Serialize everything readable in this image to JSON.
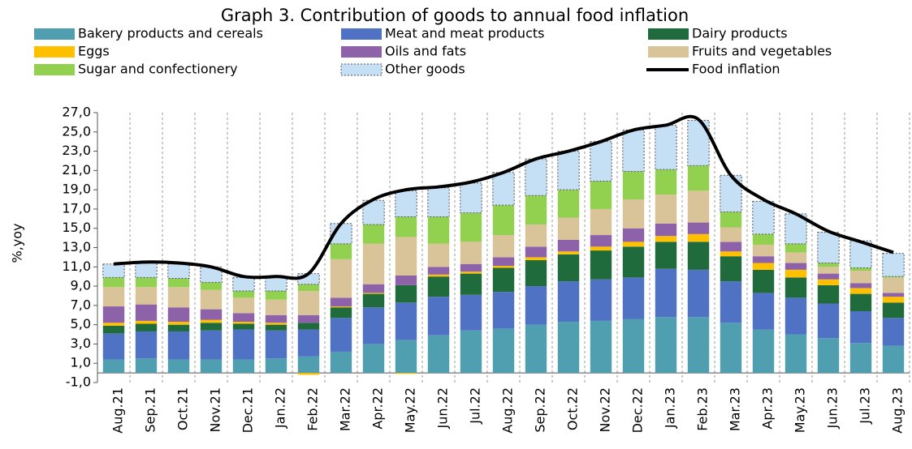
{
  "chart_data": {
    "type": "bar",
    "stacked": true,
    "title": "Graph 3. Contribution of goods to annual food inflation",
    "y_label": "%,yoy",
    "legend": "top",
    "categories": [
      "Aug.21",
      "Sep.21",
      "Oct.21",
      "Nov.21",
      "Dec.21",
      "Jan.22",
      "Feb.22",
      "Mar.22",
      "Apr.22",
      "May.22",
      "Jun.22",
      "Jul.22",
      "Aug.22",
      "Sep.22",
      "Oct.22",
      "Nov.22",
      "Dec.22",
      "Jan.23",
      "Feb.23",
      "Mar.23",
      "Apr.23",
      "May.23",
      "Jun.23",
      "Jul.23",
      "Aug.23"
    ],
    "series": [
      {
        "name": "Bakery products and cereals",
        "color": "#4f9fb0",
        "values": [
          1.4,
          1.5,
          1.4,
          1.4,
          1.4,
          1.5,
          1.7,
          2.2,
          3.0,
          3.4,
          3.9,
          4.4,
          4.6,
          5.0,
          5.3,
          5.4,
          5.6,
          5.8,
          5.8,
          5.2,
          4.5,
          4.0,
          3.6,
          3.1,
          2.8
        ]
      },
      {
        "name": "Meat and meat products",
        "color": "#4f72c4",
        "values": [
          2.7,
          2.8,
          2.9,
          3.0,
          3.1,
          2.9,
          2.8,
          3.5,
          3.8,
          3.9,
          4.0,
          3.7,
          3.8,
          4.0,
          4.2,
          4.3,
          4.3,
          5.0,
          4.9,
          4.3,
          3.8,
          3.8,
          3.6,
          3.3,
          2.9
        ]
      },
      {
        "name": "Dairy products",
        "color": "#1f6b3b",
        "values": [
          0.8,
          0.8,
          0.7,
          0.8,
          0.6,
          0.6,
          0.7,
          1.1,
          1.4,
          1.8,
          2.1,
          2.2,
          2.5,
          2.7,
          2.8,
          3.0,
          3.2,
          2.8,
          2.9,
          2.6,
          2.4,
          2.1,
          1.9,
          1.8,
          1.6
        ]
      },
      {
        "name": "Eggs",
        "color": "#ffc000",
        "values": [
          0.3,
          0.3,
          0.3,
          0.3,
          0.2,
          0.2,
          -0.2,
          0.1,
          0.1,
          -0.1,
          0.2,
          0.2,
          0.2,
          0.3,
          0.3,
          0.4,
          0.5,
          0.6,
          0.8,
          0.5,
          0.7,
          0.8,
          0.6,
          0.6,
          0.6
        ]
      },
      {
        "name": "Oils and fats",
        "color": "#8e62a8",
        "values": [
          1.7,
          1.7,
          1.5,
          1.1,
          0.9,
          0.8,
          0.8,
          0.9,
          0.9,
          1.0,
          0.8,
          0.8,
          0.9,
          1.1,
          1.2,
          1.2,
          1.4,
          1.3,
          1.2,
          1.0,
          0.7,
          0.7,
          0.6,
          0.5,
          0.4
        ]
      },
      {
        "name": "Fruits and vegetables",
        "color": "#d9c49a",
        "values": [
          2.0,
          1.8,
          2.1,
          2.0,
          1.6,
          1.6,
          2.5,
          4.0,
          4.2,
          4.0,
          2.4,
          2.3,
          2.3,
          2.3,
          2.3,
          2.7,
          3.0,
          3.0,
          3.3,
          1.5,
          1.2,
          1.1,
          0.7,
          1.3,
          1.6
        ]
      },
      {
        "name": "Sugar and confectionery",
        "color": "#92d050",
        "values": [
          1.0,
          1.0,
          0.9,
          0.8,
          0.7,
          0.9,
          0.7,
          1.6,
          2.0,
          2.1,
          2.8,
          3.0,
          3.1,
          3.0,
          2.9,
          2.9,
          2.9,
          2.6,
          2.6,
          1.6,
          1.1,
          0.9,
          0.4,
          0.3,
          0.1
        ]
      },
      {
        "name": "Other goods",
        "color": "#c5dff5",
        "values": [
          1.4,
          1.6,
          1.5,
          1.6,
          1.4,
          1.4,
          1.1,
          2.1,
          2.5,
          2.7,
          3.0,
          3.1,
          3.4,
          3.8,
          4.0,
          4.1,
          4.3,
          4.6,
          4.7,
          3.8,
          3.4,
          3.1,
          3.2,
          2.8,
          2.4
        ]
      }
    ],
    "line": {
      "name": "Food inflation",
      "color": "#000000",
      "values": [
        11.3,
        11.5,
        11.4,
        11.0,
        10.0,
        10.0,
        10.3,
        15.5,
        18.0,
        19.0,
        19.3,
        19.8,
        20.8,
        22.2,
        23.0,
        24.0,
        25.2,
        25.7,
        26.3,
        20.5,
        18.0,
        16.5,
        14.7,
        13.6,
        12.5
      ]
    },
    "ylim": [
      -1,
      27
    ],
    "yticks": [
      {
        "value": -1,
        "label": "-1,0"
      },
      {
        "value": 1,
        "label": "1,0"
      },
      {
        "value": 3,
        "label": "3,0"
      },
      {
        "value": 5,
        "label": "5,0"
      },
      {
        "value": 7,
        "label": "7,0"
      },
      {
        "value": 9,
        "label": "9,0"
      },
      {
        "value": 11,
        "label": "11,0"
      },
      {
        "value": 13,
        "label": "13,0"
      },
      {
        "value": 15,
        "label": "15,0"
      },
      {
        "value": 17,
        "label": "17,0"
      },
      {
        "value": 19,
        "label": "19,0"
      },
      {
        "value": 21,
        "label": "21,0"
      },
      {
        "value": 23,
        "label": "23,0"
      },
      {
        "value": 25,
        "label": "25,0"
      },
      {
        "value": 27,
        "label": "27,0"
      }
    ]
  }
}
